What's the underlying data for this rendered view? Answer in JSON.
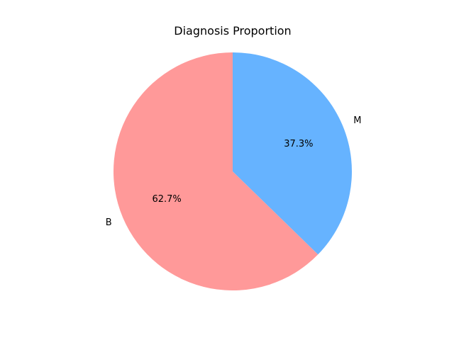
{
  "chart_data": {
    "type": "pie",
    "title": "Diagnosis Proportion",
    "slices": [
      {
        "label": "B",
        "value": 62.7,
        "pct_label": "62.7%",
        "color": "#ff9999"
      },
      {
        "label": "M",
        "value": 37.3,
        "pct_label": "37.3%",
        "color": "#66b3ff"
      }
    ],
    "start_angle_deg": 90,
    "direction": "counterclockwise",
    "legend": "none"
  }
}
